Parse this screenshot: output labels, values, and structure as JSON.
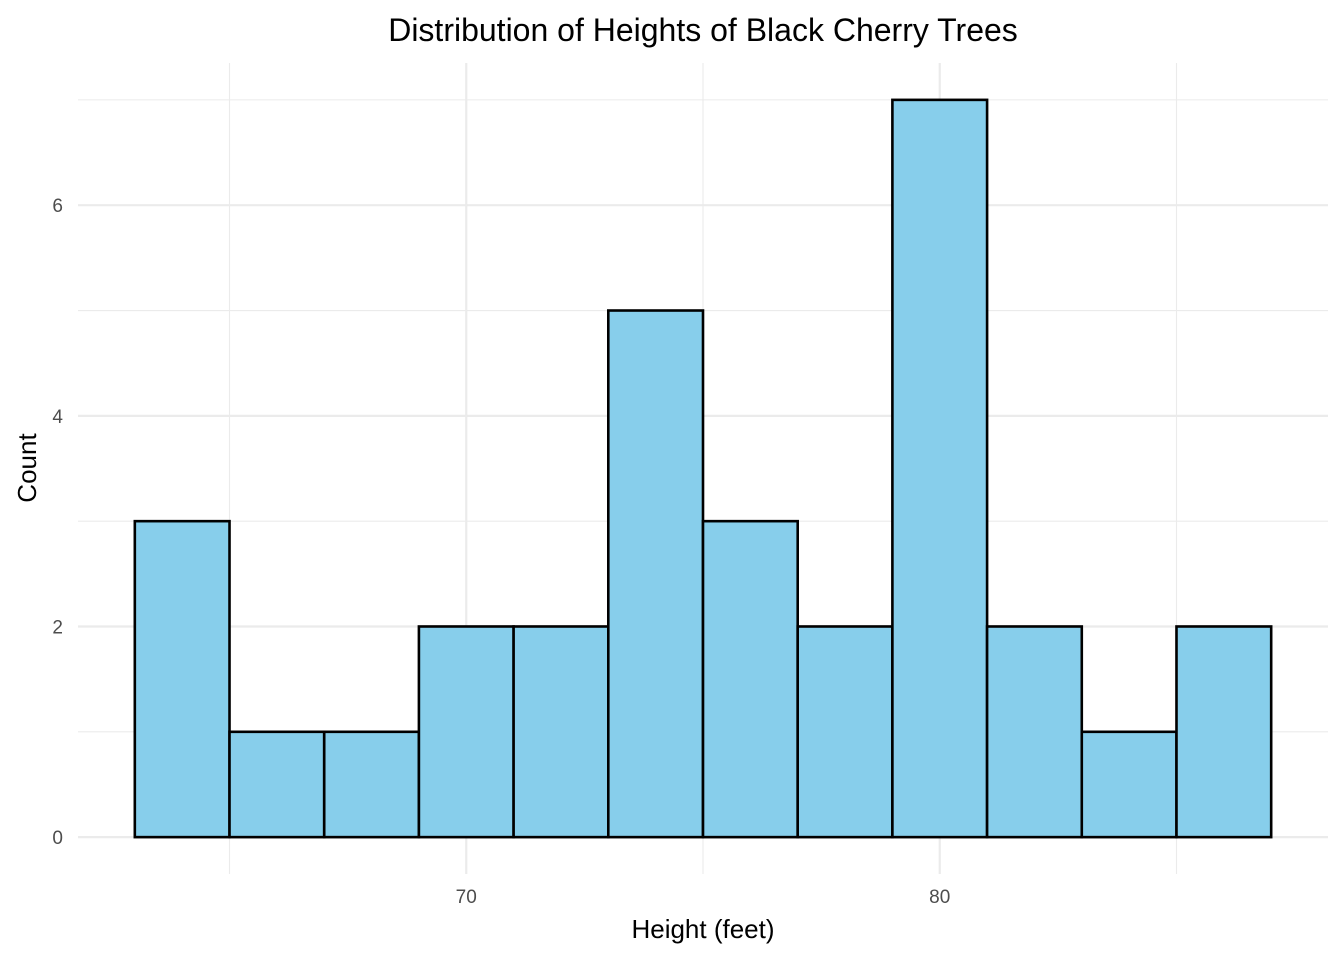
{
  "chart_data": {
    "type": "histogram",
    "title": "Distribution of Heights of Black Cherry Trees",
    "xlabel": "Height (feet)",
    "ylabel": "Count",
    "bin_width": 2,
    "bins": [
      {
        "start": 63,
        "end": 65,
        "count": 3
      },
      {
        "start": 65,
        "end": 67,
        "count": 1
      },
      {
        "start": 67,
        "end": 69,
        "count": 1
      },
      {
        "start": 69,
        "end": 71,
        "count": 2
      },
      {
        "start": 71,
        "end": 73,
        "count": 2
      },
      {
        "start": 73,
        "end": 75,
        "count": 5
      },
      {
        "start": 75,
        "end": 77,
        "count": 3
      },
      {
        "start": 77,
        "end": 79,
        "count": 2
      },
      {
        "start": 79,
        "end": 81,
        "count": 7
      },
      {
        "start": 81,
        "end": 83,
        "count": 2
      },
      {
        "start": 83,
        "end": 85,
        "count": 1
      },
      {
        "start": 85,
        "end": 87,
        "count": 2
      }
    ],
    "xlim": [
      61.8,
      88.2
    ],
    "ylim": [
      -0.35,
      7.35
    ],
    "x_major_ticks": [
      70,
      80
    ],
    "x_minor_ticks": [
      65,
      75,
      85
    ],
    "y_major_ticks": [
      0,
      2,
      4,
      6
    ],
    "y_minor_ticks": [
      1,
      3,
      5,
      7
    ],
    "fill_color": "#87CEEB",
    "border_color": "#000000",
    "grid": true
  }
}
